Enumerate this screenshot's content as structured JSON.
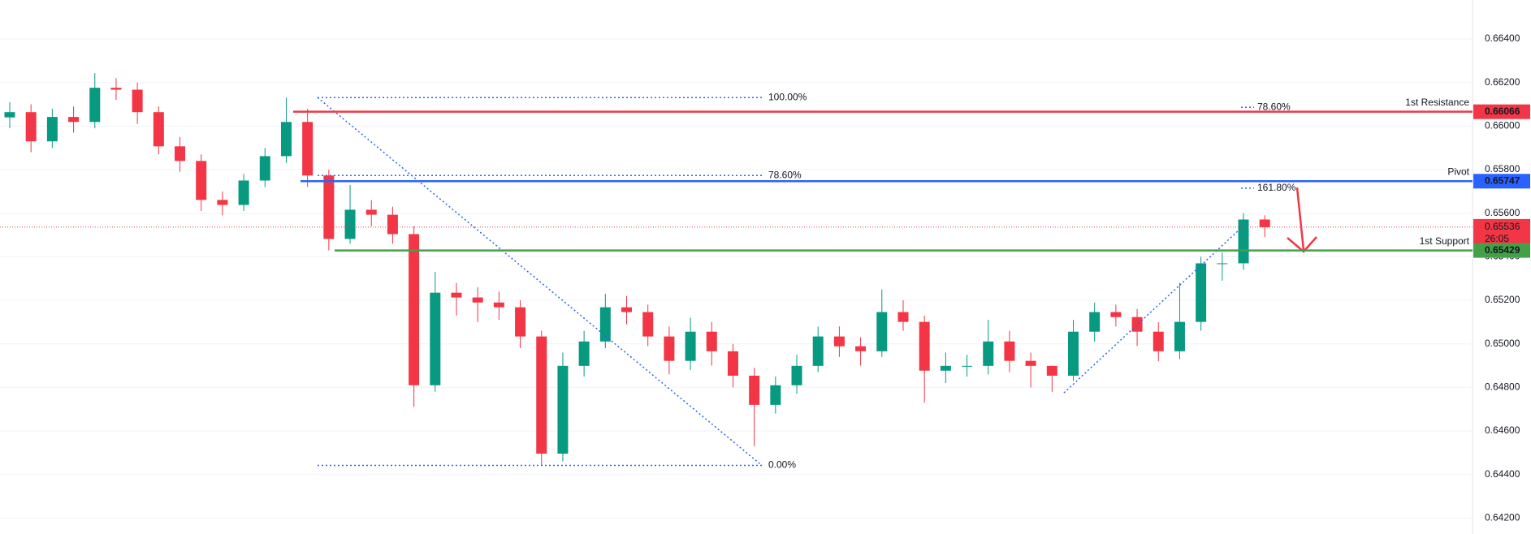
{
  "chart_data": {
    "type": "candlestick",
    "open": [
      0.6604,
      0.66064,
      0.6593,
      0.66042,
      0.66019,
      0.66176,
      0.66167,
      0.66064,
      0.65907,
      0.6584,
      0.65661,
      0.65638,
      0.6575,
      0.65862,
      0.66019,
      0.65773,
      0.65482,
      0.65616,
      0.65593,
      0.65504,
      0.6481,
      0.65235,
      0.65213,
      0.6519,
      0.65168,
      0.65034,
      0.64496,
      0.64899,
      0.65011,
      0.65168,
      0.65146,
      0.65034,
      0.64922,
      0.65056,
      0.64966,
      0.64854,
      0.6472,
      0.6481,
      0.64899,
      0.65034,
      0.64989,
      0.64966,
      0.65146,
      0.65101,
      0.64877,
      0.64899,
      0.64899,
      0.65011,
      0.64922,
      0.64899,
      0.64854,
      0.65056,
      0.65146,
      0.65123,
      0.65056,
      0.64966,
      0.65101,
      0.6537,
      0.6537,
      0.65571
    ],
    "high": [
      0.6611,
      0.661,
      0.6608,
      0.6609,
      0.66243,
      0.6622,
      0.662,
      0.6609,
      0.6595,
      0.6587,
      0.657,
      0.6578,
      0.659,
      0.66131,
      0.6608,
      0.658,
      0.6573,
      0.6566,
      0.6563,
      0.6554,
      0.6533,
      0.6528,
      0.6526,
      0.6524,
      0.652,
      0.6506,
      0.6496,
      0.6506,
      0.6523,
      0.6522,
      0.6518,
      0.6508,
      0.6512,
      0.651,
      0.65,
      0.6489,
      0.6485,
      0.6495,
      0.6508,
      0.6508,
      0.6503,
      0.6525,
      0.652,
      0.6513,
      0.6496,
      0.6495,
      0.6511,
      0.6506,
      0.6496,
      0.649,
      0.6511,
      0.6519,
      0.6518,
      0.6516,
      0.651,
      0.6528,
      0.654,
      0.6542,
      0.656,
      0.6559
    ],
    "low": [
      0.6599,
      0.6588,
      0.659,
      0.6597,
      0.6599,
      0.6612,
      0.6601,
      0.6587,
      0.6579,
      0.6561,
      0.6559,
      0.6561,
      0.6572,
      0.6583,
      0.6572,
      0.65429,
      0.6546,
      0.6554,
      0.6546,
      0.6471,
      0.6478,
      0.6513,
      0.651,
      0.6511,
      0.6498,
      0.64442,
      0.6446,
      0.6485,
      0.6498,
      0.6509,
      0.6499,
      0.6486,
      0.6488,
      0.649,
      0.648,
      0.6453,
      0.6468,
      0.6477,
      0.6487,
      0.6494,
      0.649,
      0.6494,
      0.6506,
      0.6473,
      0.6482,
      0.6485,
      0.6486,
      0.6487,
      0.648,
      0.6478,
      0.6483,
      0.6501,
      0.6508,
      0.6499,
      0.6492,
      0.6493,
      0.6506,
      0.6529,
      0.6534,
      0.6549
    ],
    "close": [
      0.66064,
      0.6593,
      0.66042,
      0.66019,
      0.66176,
      0.66167,
      0.66064,
      0.65907,
      0.6584,
      0.65661,
      0.65638,
      0.6575,
      0.65862,
      0.66019,
      0.65773,
      0.65482,
      0.65616,
      0.65593,
      0.65504,
      0.6481,
      0.65235,
      0.65213,
      0.6519,
      0.65168,
      0.65034,
      0.64496,
      0.64899,
      0.65011,
      0.65168,
      0.65146,
      0.65034,
      0.64922,
      0.65056,
      0.64966,
      0.64854,
      0.6472,
      0.6481,
      0.64899,
      0.65034,
      0.64989,
      0.64966,
      0.65146,
      0.65101,
      0.64877,
      0.64899,
      0.64899,
      0.65011,
      0.64922,
      0.64899,
      0.64854,
      0.65056,
      0.65146,
      0.65123,
      0.65056,
      0.64966,
      0.65101,
      0.6537,
      0.6537,
      0.65571,
      0.65536
    ],
    "up_color": "#089981",
    "down_color": "#f23645",
    "ylim": [
      0.64127,
      0.66579
    ],
    "yticks": [
      {
        "value": 0.642,
        "label": "0.64200"
      },
      {
        "value": 0.644,
        "label": "0.64400"
      },
      {
        "value": 0.646,
        "label": "0.64600"
      },
      {
        "value": 0.648,
        "label": "0.64800"
      },
      {
        "value": 0.65,
        "label": "0.65000"
      },
      {
        "value": 0.652,
        "label": "0.65200"
      },
      {
        "value": 0.654,
        "label": "0.65400"
      },
      {
        "value": 0.656,
        "label": "0.65600"
      },
      {
        "value": 0.658,
        "label": "0.65800"
      },
      {
        "value": 0.66,
        "label": "0.66000"
      },
      {
        "value": 0.662,
        "label": "0.66200"
      },
      {
        "value": 0.664,
        "label": "0.66400"
      }
    ],
    "grid": true,
    "levels": [
      {
        "name": "1st Resistance",
        "value": 0.66066,
        "color": "#f23645"
      },
      {
        "name": "Pivot",
        "value": 0.65747,
        "color": "#2962ff"
      },
      {
        "name": "1st Support",
        "value": 0.65429,
        "color": "#43a047"
      }
    ],
    "current_price": {
      "value": 0.65536,
      "countdown": "26:05",
      "color": "#f23645"
    },
    "fib_levels": [
      {
        "label": "100.00%",
        "value": 0.66131
      },
      {
        "label": "78.60%",
        "value": 0.65773
      },
      {
        "label": "0.00%",
        "value": 0.64442
      }
    ],
    "fib_extension": [
      {
        "label": "78.60%",
        "value": 0.66086
      },
      {
        "label": "161.80%",
        "value": 0.65715
      }
    ],
    "fib_color": "#2962ff"
  }
}
